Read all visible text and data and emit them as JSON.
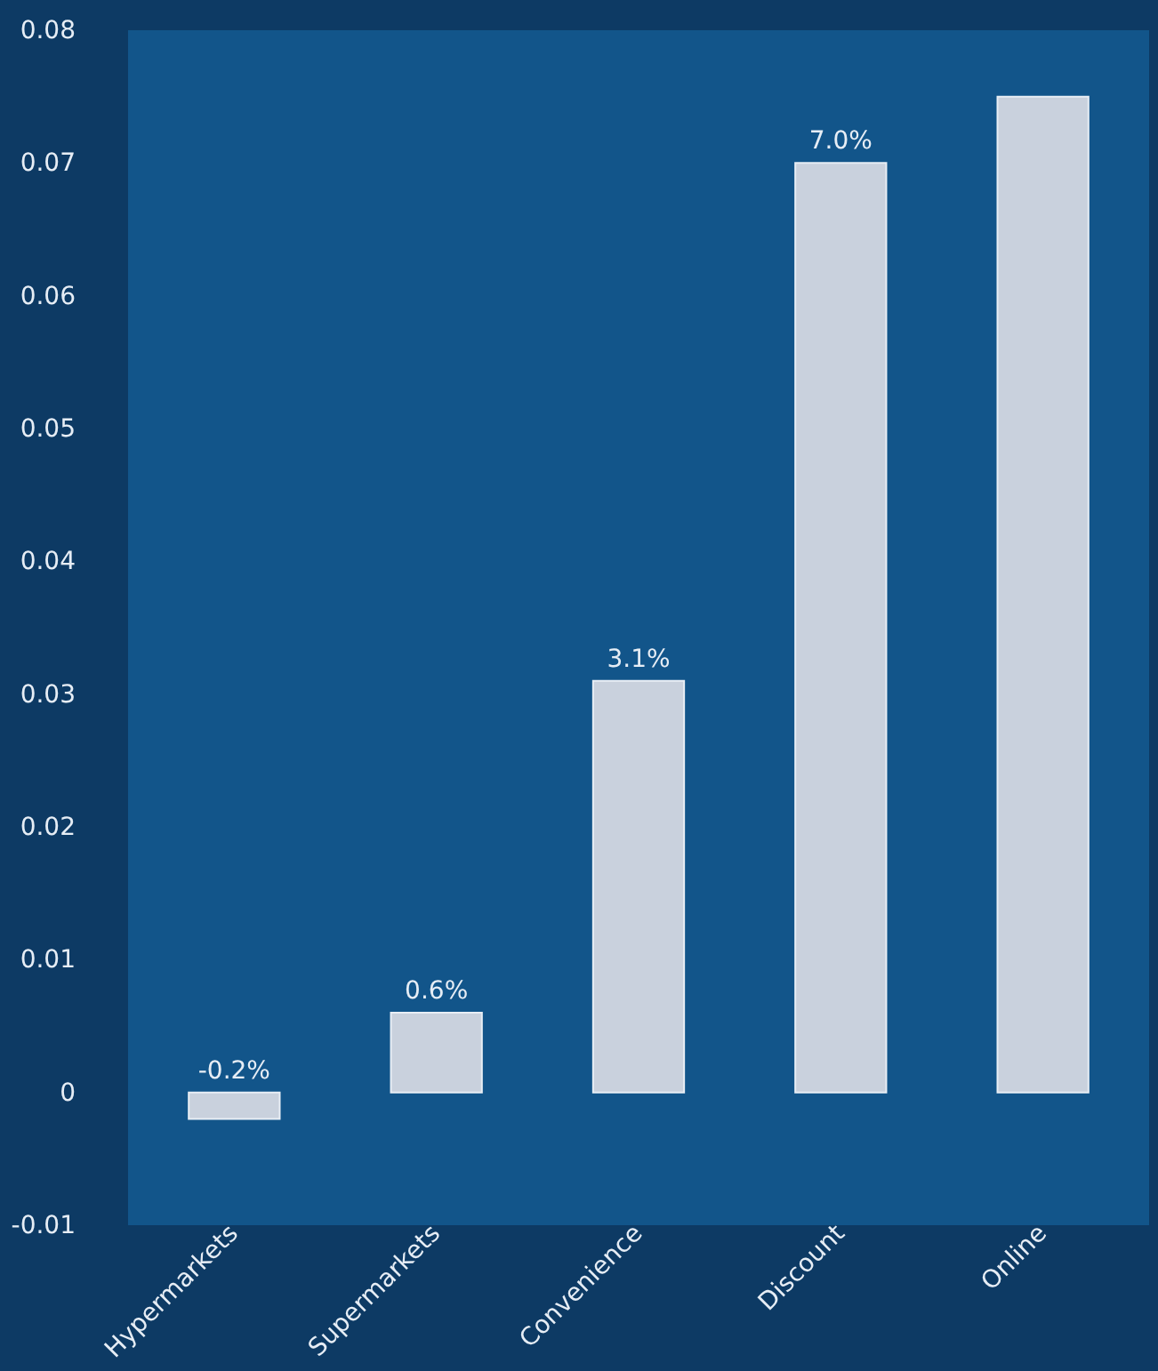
{
  "chart_data": {
    "type": "bar",
    "categories": [
      "Hypermarkets",
      "Supermarkets",
      "Convenience",
      "Discount",
      "Online"
    ],
    "values": [
      -0.002,
      0.006,
      0.031,
      0.07,
      0.075
    ],
    "value_labels": [
      "-0.2%",
      "0.6%",
      "3.1%",
      "7.0%",
      null
    ],
    "color": "#c9d1dd",
    "ylim": [
      -0.01,
      0.08
    ],
    "yticks": [
      -0.01,
      0,
      0.01,
      0.02,
      0.03,
      0.04,
      0.05,
      0.06,
      0.07,
      0.08
    ],
    "grid": false
  }
}
